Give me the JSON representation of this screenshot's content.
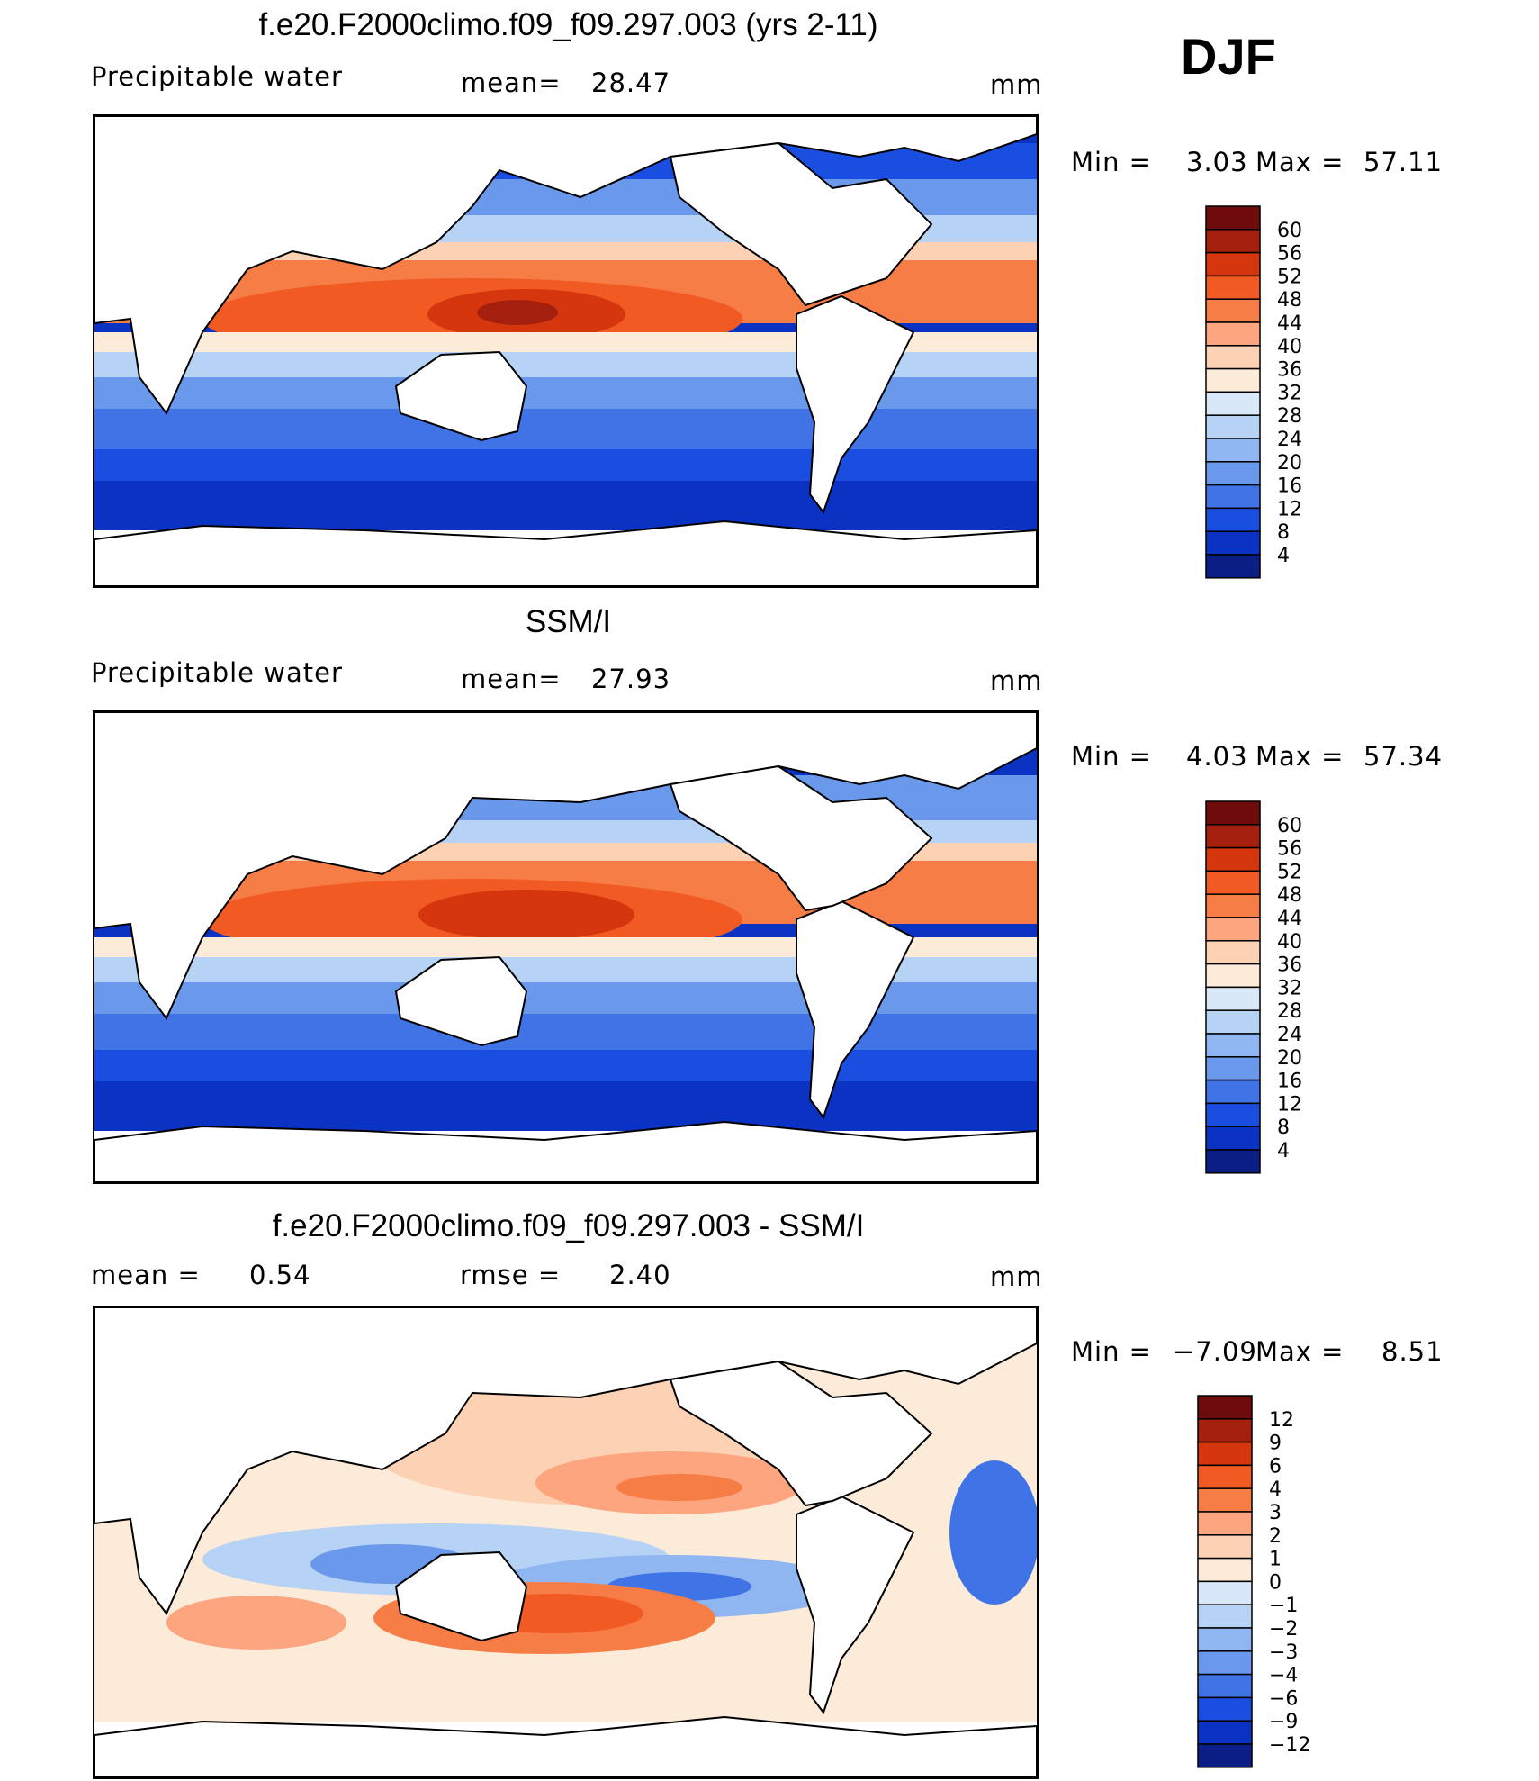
{
  "season": "DJF",
  "panels": [
    {
      "title": "f.e20.F2000climo.f09_f09.297.003 (yrs 2-11)",
      "left_label": "Precipitable  water",
      "mid_label": "mean=",
      "mid_value": "28.47",
      "units": "mm",
      "minmax_min_label": "Min  =",
      "min_value": "3.03",
      "minmax_max_label": "Max  =",
      "max_value": "57.11",
      "colorbar_ticks": [
        "60",
        "56",
        "52",
        "48",
        "44",
        "40",
        "36",
        "32",
        "28",
        "24",
        "20",
        "16",
        "12",
        "8",
        "4"
      ]
    },
    {
      "title": "SSM/I",
      "left_label": "Precipitable  water",
      "mid_label": "mean=",
      "mid_value": "27.93",
      "units": "mm",
      "minmax_min_label": "Min  =",
      "min_value": "4.03",
      "minmax_max_label": "Max  =",
      "max_value": "57.34",
      "colorbar_ticks": [
        "60",
        "56",
        "52",
        "48",
        "44",
        "40",
        "36",
        "32",
        "28",
        "24",
        "20",
        "16",
        "12",
        "8",
        "4"
      ]
    },
    {
      "title": "f.e20.F2000climo.f09_f09.297.003 - SSM/I",
      "left_label": "mean  =",
      "left_value": "0.54",
      "mid_label": "rmse  =",
      "mid_value": "2.40",
      "units": "mm",
      "minmax_min_label": "Min  =",
      "min_value": "−7.09",
      "minmax_max_label": "Max  =",
      "max_value": "8.51",
      "colorbar_ticks": [
        "12",
        "9",
        "6",
        "4",
        "3",
        "2",
        "1",
        "0",
        "−1",
        "−2",
        "−3",
        "−4",
        "−6",
        "−9",
        "−12"
      ]
    }
  ],
  "colors": {
    "abs_scale": [
      "#6e0b0b",
      "#a5200c",
      "#d6360e",
      "#f15a22",
      "#f77d47",
      "#fca57f",
      "#fdd1b4",
      "#fdebd9",
      "#d9e8f8",
      "#b6d2f5",
      "#8fb6f0",
      "#6a99ec",
      "#3f73e6",
      "#1a4ee0",
      "#0a33c4",
      "#0a1e86"
    ],
    "diff_scale": [
      "#6e0b0b",
      "#a5200c",
      "#d6360e",
      "#f15a22",
      "#f77d47",
      "#fca57f",
      "#fdd1b4",
      "#fdebd9",
      "#d9e8f8",
      "#b6d2f5",
      "#8fb6f0",
      "#6a99ec",
      "#3f73e6",
      "#1a4ee0",
      "#0a33c4",
      "#0a1e86"
    ]
  },
  "chart_data": [
    {
      "type": "heatmap",
      "title": "f.e20.F2000climo.f09_f09.297.003 (yrs 2-11)",
      "variable": "Precipitable  water",
      "units": "mm",
      "mean": 28.47,
      "min": 3.03,
      "max": 57.11,
      "colorbar_levels": [
        4,
        8,
        12,
        16,
        20,
        24,
        28,
        32,
        36,
        40,
        44,
        48,
        52,
        56,
        60
      ]
    },
    {
      "type": "heatmap",
      "title": "SSM/I",
      "variable": "Precipitable  water",
      "units": "mm",
      "mean": 27.93,
      "min": 4.03,
      "max": 57.34,
      "colorbar_levels": [
        4,
        8,
        12,
        16,
        20,
        24,
        28,
        32,
        36,
        40,
        44,
        48,
        52,
        56,
        60
      ]
    },
    {
      "type": "heatmap",
      "title": "f.e20.F2000climo.f09_f09.297.003 - SSM/I",
      "units": "mm",
      "mean": 0.54,
      "rmse": 2.4,
      "min": -7.09,
      "max": 8.51,
      "colorbar_levels": [
        -12,
        -9,
        -6,
        -4,
        -3,
        -2,
        -1,
        0,
        1,
        2,
        3,
        4,
        6,
        9,
        12
      ]
    }
  ]
}
